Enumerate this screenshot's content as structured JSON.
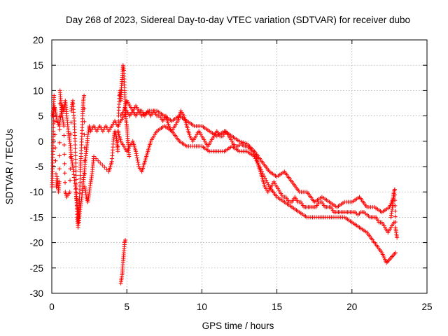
{
  "chart_data": {
    "type": "scatter",
    "title": "Day 268 of 2023, Sidereal Day-to-day VTEC variation (SDTVAR) for receiver dubo",
    "xlabel": "GPS time / hours",
    "ylabel": "SDTVAR / TECUs",
    "xlim": [
      0,
      25
    ],
    "ylim": [
      -30,
      20
    ],
    "xticks": [
      "0",
      "5",
      "10",
      "15",
      "20",
      "25"
    ],
    "yticks": [
      "-30",
      "-25",
      "-20",
      "-15",
      "-10",
      "-5",
      "0",
      "5",
      "10",
      "15",
      "20"
    ],
    "grid": true,
    "marker": "plus",
    "color": "#ff0000",
    "series": [
      {
        "name": "main-trace",
        "points": [
          [
            0.05,
            5
          ],
          [
            0.15,
            7
          ],
          [
            0.25,
            6
          ],
          [
            0.35,
            4
          ],
          [
            0.5,
            3
          ],
          [
            0.6,
            5
          ],
          [
            0.7,
            7
          ],
          [
            0.8,
            6
          ],
          [
            0.9,
            8
          ],
          [
            1.0,
            5
          ],
          [
            1.1,
            2
          ],
          [
            1.2,
            0
          ],
          [
            1.3,
            -3
          ],
          [
            1.45,
            -6
          ],
          [
            1.6,
            -10
          ],
          [
            1.7,
            -13
          ],
          [
            1.8,
            -16
          ],
          [
            1.9,
            -13
          ],
          [
            2.0,
            -11
          ],
          [
            2.1,
            -8
          ],
          [
            2.2,
            -5
          ],
          [
            2.3,
            -2
          ],
          [
            2.4,
            1
          ],
          [
            2.5,
            3
          ],
          [
            2.6,
            2
          ],
          [
            2.8,
            3
          ],
          [
            3.0,
            2
          ],
          [
            3.2,
            3
          ],
          [
            3.4,
            2
          ],
          [
            3.6,
            3
          ],
          [
            3.8,
            2
          ],
          [
            4.0,
            3
          ],
          [
            4.2,
            4
          ],
          [
            4.4,
            3
          ],
          [
            4.6,
            4
          ],
          [
            4.8,
            5
          ],
          [
            5.0,
            6
          ],
          [
            5.2,
            5
          ],
          [
            5.4,
            6
          ],
          [
            5.6,
            7
          ],
          [
            5.8,
            6
          ],
          [
            6.0,
            6
          ],
          [
            6.2,
            5
          ],
          [
            6.4,
            6
          ],
          [
            6.6,
            5
          ],
          [
            6.8,
            6
          ],
          [
            7.0,
            5
          ],
          [
            7.2,
            5
          ],
          [
            7.4,
            4
          ],
          [
            7.6,
            5
          ],
          [
            7.8,
            3
          ],
          [
            8.0,
            2
          ],
          [
            8.2,
            3
          ],
          [
            8.4,
            4
          ],
          [
            8.6,
            6
          ],
          [
            8.8,
            5
          ],
          [
            9.0,
            3
          ],
          [
            9.2,
            1
          ],
          [
            9.4,
            0
          ],
          [
            9.6,
            1
          ],
          [
            9.8,
            2
          ],
          [
            10.0,
            1
          ],
          [
            10.2,
            0
          ],
          [
            10.4,
            -1
          ],
          [
            10.6,
            0
          ],
          [
            10.8,
            1
          ],
          [
            11.0,
            2
          ],
          [
            11.2,
            1
          ],
          [
            11.4,
            1
          ],
          [
            11.6,
            2
          ],
          [
            11.8,
            1
          ],
          [
            12.0,
            0
          ],
          [
            12.2,
            -1
          ],
          [
            12.4,
            -1
          ],
          [
            12.6,
            -0.5
          ],
          [
            12.8,
            -1
          ],
          [
            13.0,
            -1
          ],
          [
            13.2,
            -1.5
          ],
          [
            13.4,
            -2
          ],
          [
            13.6,
            -3
          ],
          [
            13.8,
            -5
          ],
          [
            14.0,
            -7
          ],
          [
            14.2,
            -9
          ],
          [
            14.4,
            -10
          ],
          [
            14.6,
            -9
          ],
          [
            14.8,
            -8
          ],
          [
            15.0,
            -9
          ],
          [
            15.2,
            -10
          ],
          [
            15.4,
            -11
          ],
          [
            15.6,
            -11
          ],
          [
            15.8,
            -12
          ],
          [
            16.0,
            -12
          ],
          [
            16.2,
            -11
          ],
          [
            16.4,
            -12
          ],
          [
            16.6,
            -12
          ],
          [
            16.8,
            -13
          ],
          [
            17.0,
            -13
          ],
          [
            17.2,
            -13
          ],
          [
            17.4,
            -13
          ],
          [
            17.6,
            -13
          ],
          [
            17.8,
            -12
          ],
          [
            18.0,
            -12
          ],
          [
            18.2,
            -13
          ],
          [
            18.4,
            -13
          ],
          [
            18.6,
            -13
          ],
          [
            18.8,
            -14
          ],
          [
            19.0,
            -14
          ],
          [
            19.2,
            -14
          ],
          [
            19.4,
            -14
          ],
          [
            19.6,
            -14
          ],
          [
            19.8,
            -14
          ],
          [
            20.0,
            -14
          ],
          [
            20.2,
            -14
          ],
          [
            20.4,
            -14.5
          ],
          [
            20.6,
            -14
          ],
          [
            20.8,
            -14
          ],
          [
            21.0,
            -14.5
          ],
          [
            21.2,
            -15
          ],
          [
            21.4,
            -15
          ],
          [
            21.6,
            -15
          ],
          [
            21.8,
            -16
          ],
          [
            22.0,
            -16
          ],
          [
            22.2,
            -17
          ],
          [
            22.4,
            -18
          ],
          [
            22.6,
            -17
          ],
          [
            22.8,
            -16
          ]
        ]
      },
      {
        "name": "upper-branch",
        "points": [
          [
            4.6,
            5
          ],
          [
            4.8,
            6
          ],
          [
            5.0,
            8
          ],
          [
            5.2,
            7
          ],
          [
            5.4,
            6
          ],
          [
            5.6,
            5
          ],
          [
            5.8,
            6
          ],
          [
            6.0,
            5
          ],
          [
            6.5,
            6
          ],
          [
            7.0,
            6
          ],
          [
            7.5,
            5
          ],
          [
            8.0,
            4
          ],
          [
            8.5,
            5
          ],
          [
            9.0,
            4
          ],
          [
            9.5,
            3
          ],
          [
            10.0,
            3
          ],
          [
            10.5,
            2
          ],
          [
            11.0,
            1
          ],
          [
            11.5,
            2
          ],
          [
            12.0,
            1
          ],
          [
            12.5,
            0
          ],
          [
            13.0,
            -0.5
          ],
          [
            13.5,
            -2
          ],
          [
            14.0,
            -4
          ],
          [
            14.5,
            -6
          ],
          [
            15.0,
            -7
          ],
          [
            15.5,
            -6
          ],
          [
            16.0,
            -8
          ],
          [
            16.5,
            -10
          ],
          [
            17.0,
            -10
          ],
          [
            17.5,
            -12
          ],
          [
            18.0,
            -11
          ],
          [
            18.5,
            -12
          ],
          [
            19.0,
            -13
          ],
          [
            19.5,
            -12
          ],
          [
            20.0,
            -12
          ],
          [
            20.5,
            -11
          ],
          [
            21.0,
            -13
          ],
          [
            21.5,
            -13
          ],
          [
            22.0,
            -14
          ],
          [
            22.5,
            -13
          ],
          [
            22.8,
            -11
          ]
        ]
      },
      {
        "name": "lower-branch",
        "points": [
          [
            4.4,
            2
          ],
          [
            4.6,
            0
          ],
          [
            4.8,
            -1
          ],
          [
            5.0,
            -2
          ],
          [
            5.2,
            -1
          ],
          [
            5.4,
            0
          ],
          [
            5.6,
            -2
          ],
          [
            5.8,
            -5
          ],
          [
            6.0,
            -6
          ],
          [
            6.2,
            -4
          ],
          [
            6.4,
            -2
          ],
          [
            6.6,
            0
          ],
          [
            6.8,
            1
          ],
          [
            7.0,
            2
          ],
          [
            7.5,
            3
          ],
          [
            8.0,
            2
          ],
          [
            8.5,
            0
          ],
          [
            9.0,
            -1
          ],
          [
            9.5,
            -1
          ],
          [
            10.0,
            -1
          ],
          [
            10.5,
            -2
          ],
          [
            11.0,
            -2
          ],
          [
            11.5,
            -2
          ],
          [
            12.0,
            -1
          ],
          [
            12.5,
            -2
          ],
          [
            13.0,
            -2
          ],
          [
            13.5,
            -3
          ],
          [
            14.0,
            -6
          ],
          [
            14.5,
            -9
          ],
          [
            15.0,
            -11
          ],
          [
            15.5,
            -12
          ],
          [
            16.0,
            -13
          ],
          [
            16.5,
            -14
          ],
          [
            17.0,
            -15
          ],
          [
            17.5,
            -15
          ],
          [
            18.0,
            -15
          ],
          [
            18.5,
            -15
          ],
          [
            19.0,
            -15
          ],
          [
            19.5,
            -15
          ],
          [
            20.0,
            -16
          ],
          [
            20.5,
            -17
          ],
          [
            21.0,
            -18
          ],
          [
            21.5,
            -20
          ],
          [
            22.0,
            -22
          ],
          [
            22.3,
            -24
          ],
          [
            22.6,
            -23
          ],
          [
            22.9,
            -22
          ]
        ]
      },
      {
        "name": "early-scatter",
        "points": [
          [
            0.02,
            -9
          ],
          [
            0.05,
            -6
          ],
          [
            0.08,
            -2
          ],
          [
            0.1,
            2
          ],
          [
            0.12,
            7
          ],
          [
            0.15,
            9
          ],
          [
            0.3,
            -9
          ],
          [
            0.35,
            -7
          ],
          [
            0.45,
            -10
          ],
          [
            0.5,
            -8
          ],
          [
            0.55,
            10
          ],
          [
            0.6,
            8
          ],
          [
            0.7,
            5
          ],
          [
            0.8,
            3
          ],
          [
            0.9,
            -10
          ],
          [
            1.0,
            -11
          ],
          [
            1.2,
            -10
          ],
          [
            1.3,
            6
          ],
          [
            1.4,
            8
          ],
          [
            1.5,
            4
          ],
          [
            1.55,
            0
          ],
          [
            1.6,
            -5
          ],
          [
            1.65,
            -11
          ],
          [
            1.7,
            -15
          ],
          [
            1.75,
            -17
          ],
          [
            1.8,
            -14
          ],
          [
            1.85,
            -11
          ],
          [
            1.9,
            -6
          ],
          [
            1.95,
            -3
          ],
          [
            2.0,
            1
          ],
          [
            2.05,
            5
          ],
          [
            2.1,
            8
          ],
          [
            2.15,
            9
          ],
          [
            2.2,
            -9
          ],
          [
            2.3,
            -11
          ],
          [
            2.4,
            -12
          ],
          [
            2.5,
            -10
          ],
          [
            2.6,
            -8
          ],
          [
            2.7,
            -6
          ],
          [
            2.8,
            -3
          ],
          [
            3.8,
            -6
          ],
          [
            3.9,
            -5
          ],
          [
            4.0,
            -4
          ],
          [
            4.1,
            0
          ],
          [
            4.2,
            2
          ],
          [
            4.3,
            1
          ],
          [
            4.4,
            -2
          ],
          [
            4.45,
            5
          ],
          [
            4.5,
            9
          ],
          [
            4.55,
            10
          ],
          [
            4.6,
            8
          ],
          [
            4.65,
            11
          ],
          [
            4.7,
            13
          ],
          [
            4.75,
            15
          ],
          [
            4.8,
            14
          ],
          [
            4.85,
            10
          ],
          [
            4.9,
            7
          ],
          [
            4.95,
            4
          ],
          [
            5.0,
            3
          ],
          [
            5.05,
            1
          ],
          [
            5.1,
            -1
          ],
          [
            5.15,
            -3
          ]
        ]
      },
      {
        "name": "outlier-cluster",
        "points": [
          [
            4.6,
            -28
          ],
          [
            4.65,
            -27
          ],
          [
            4.7,
            -26
          ],
          [
            4.75,
            -24
          ],
          [
            4.8,
            -22
          ],
          [
            4.85,
            -20
          ],
          [
            4.9,
            -19.5
          ]
        ]
      },
      {
        "name": "end-spikes",
        "points": [
          [
            22.6,
            -15
          ],
          [
            22.7,
            -13
          ],
          [
            22.75,
            -11
          ],
          [
            22.8,
            -10
          ],
          [
            22.85,
            -9.5
          ],
          [
            22.9,
            -17
          ],
          [
            22.95,
            -18
          ],
          [
            23.0,
            -19
          ]
        ]
      }
    ]
  }
}
